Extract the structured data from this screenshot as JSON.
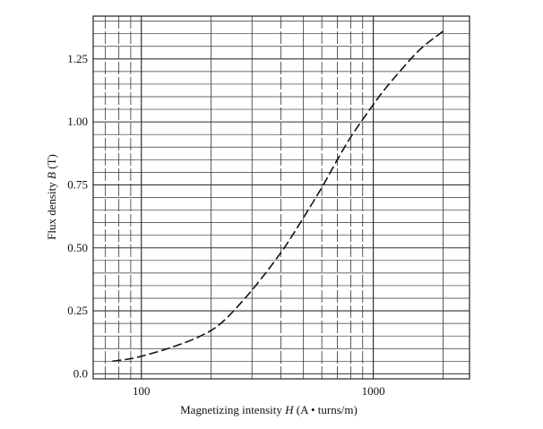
{
  "chart_data": {
    "type": "line",
    "xlabel_pre": "Magnetizing intensity ",
    "xlabel_var": "H",
    "xlabel_post": " (A • turns/m)",
    "ylabel_pre": "Flux density ",
    "ylabel_var": "B",
    "ylabel_post": " (T)",
    "x_scale": "log",
    "xlim": [
      62,
      2600
    ],
    "ylim": [
      -0.02,
      1.42
    ],
    "x_ticks": [
      100,
      1000
    ],
    "x_tick_labels": [
      "100",
      "1000"
    ],
    "y_ticks": [
      0.0,
      0.25,
      0.5,
      0.75,
      1.0,
      1.25
    ],
    "y_tick_labels": [
      "0.0",
      "0.25",
      "0.50",
      "0.75",
      "1.00",
      "1.25"
    ],
    "grid": true,
    "line_style": "dashed",
    "series": [
      {
        "x": [
          75,
          90,
          110,
          140,
          180,
          220,
          280,
          350,
          420,
          500,
          600,
          700,
          800,
          950,
          1100,
          1300,
          1600,
          2000
        ],
        "y": [
          0.05,
          0.06,
          0.08,
          0.11,
          0.15,
          0.2,
          0.3,
          0.41,
          0.51,
          0.62,
          0.74,
          0.85,
          0.94,
          1.04,
          1.12,
          1.2,
          1.29,
          1.36
        ]
      }
    ]
  }
}
